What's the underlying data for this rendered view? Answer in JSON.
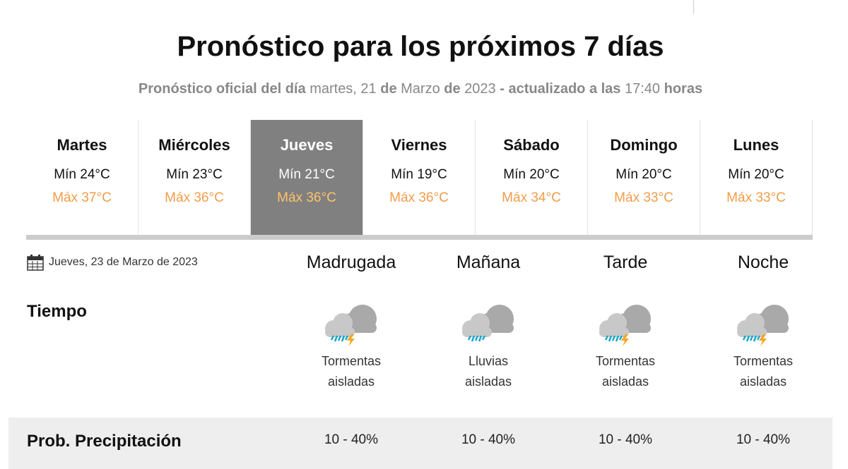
{
  "title": "Pronóstico para los próximos 7 días",
  "subtitle": {
    "p1": "Pronóstico oficial del día",
    "p2": "martes, 21",
    "p3": "de",
    "p4": "Marzo",
    "p5": "de",
    "p6": "2023",
    "p7": "- actualizado a las",
    "p8": "17:40",
    "p9": "horas"
  },
  "days": [
    {
      "name": "Martes",
      "min": "Mín 24°C",
      "max": "Máx 37°C"
    },
    {
      "name": "Miércoles",
      "min": "Mín 23°C",
      "max": "Máx 36°C"
    },
    {
      "name": "Jueves",
      "min": "Mín 21°C",
      "max": "Máx 36°C",
      "selected": true
    },
    {
      "name": "Viernes",
      "min": "Mín 19°C",
      "max": "Máx 36°C"
    },
    {
      "name": "Sábado",
      "min": "Mín 20°C",
      "max": "Máx 34°C"
    },
    {
      "name": "Domingo",
      "min": "Mín 20°C",
      "max": "Máx 33°C"
    },
    {
      "name": "Lunes",
      "min": "Mín 20°C",
      "max": "Máx 33°C"
    }
  ],
  "detail": {
    "date": "Jueves, 23 de Marzo de 2023",
    "periods": [
      "Madrugada",
      "Mañana",
      "Tarde",
      "Noche"
    ],
    "weather_label": "Tiempo",
    "weather": [
      {
        "icon": "storm-cloud-icon",
        "l1": "Tormentas",
        "l2": "aisladas"
      },
      {
        "icon": "rain-cloud-icon",
        "l1": "Lluvias",
        "l2": "aisladas"
      },
      {
        "icon": "storm-cloud-icon",
        "l1": "Tormentas",
        "l2": "aisladas"
      },
      {
        "icon": "storm-cloud-icon",
        "l1": "Tormentas",
        "l2": "aisladas"
      }
    ],
    "prob_label": "Prob. Precipitación",
    "prob": [
      "10 - 40%",
      "10 - 40%",
      "10 - 40%",
      "10 - 40%"
    ]
  },
  "colors": {
    "max_temp": "#f39c4a",
    "selected_bg": "#808080",
    "rain": "#1aa7c9",
    "bolt": "#f5a623"
  }
}
